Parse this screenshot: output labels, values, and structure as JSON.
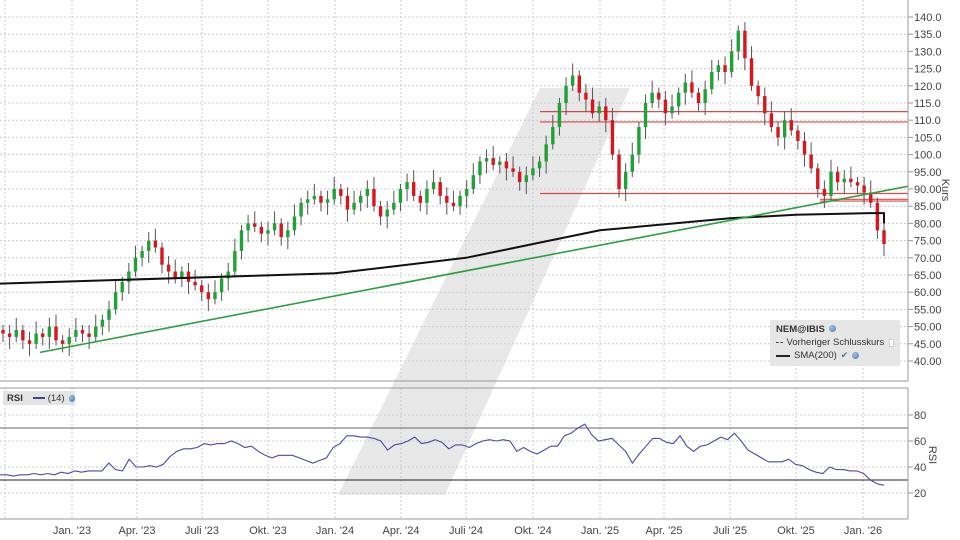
{
  "chart_data": [
    {
      "type": "candlestick",
      "title": "NEM@IBIS",
      "ylabel": "Kurs",
      "ylim": [
        37,
        143
      ],
      "yticks": [
        "140.0",
        "135.0",
        "130.0",
        "125.0",
        "120.0",
        "115.0",
        "110.0",
        "105.0",
        "100.0",
        "95.00",
        "90.00",
        "85.00",
        "80.00",
        "75.00",
        "70.00",
        "65.00",
        "60.00",
        "55.00",
        "50.00",
        "45.00",
        "40.00"
      ],
      "xticks": [
        "Jan. '23",
        "Apr. '23",
        "Juli '23",
        "Okt. '23",
        "Jan. '24",
        "Apr. '24",
        "Juli '24",
        "Okt. '24",
        "Jan. '25",
        "Apr. '25",
        "Juli '25",
        "Okt. '25",
        "Jan. '26"
      ],
      "legend": [
        "NEM@IBIS",
        "Vorheriger Schlusskurs",
        "SMA(200)"
      ],
      "weekly_close_approx": [
        48,
        47,
        49,
        46,
        45,
        48,
        47,
        50,
        46,
        45,
        47,
        49,
        48,
        47,
        50,
        52,
        55,
        60,
        63,
        66,
        70,
        72,
        75,
        73,
        68,
        66,
        64,
        66,
        63,
        62,
        60,
        58,
        60,
        64,
        66,
        72,
        78,
        80,
        79,
        77,
        78,
        80,
        76,
        78,
        82,
        86,
        87,
        88,
        86,
        87,
        90,
        88,
        84,
        86,
        88,
        90,
        85,
        82,
        84,
        86,
        90,
        92,
        88,
        86,
        90,
        92,
        88,
        86,
        85,
        88,
        90,
        94,
        98,
        99,
        97,
        98,
        96,
        95,
        92,
        94,
        96,
        98,
        103,
        108,
        115,
        120,
        123,
        118,
        116,
        112,
        114,
        110,
        100,
        90,
        95,
        100,
        108,
        115,
        118,
        116,
        112,
        114,
        118,
        121,
        118,
        115,
        119,
        124,
        126,
        124,
        130,
        136,
        128,
        120,
        117,
        112,
        108,
        105,
        110,
        107,
        104,
        100,
        96,
        90,
        88,
        95,
        92,
        93,
        92,
        91,
        89,
        86,
        78,
        74
      ],
      "sma200_approx": {
        "start": 62.5,
        "Jan. '24": 65.5,
        "Juli '24": 70,
        "Okt. '24": 74,
        "Jan. '25": 78,
        "Juli '25": 81.5,
        "Okt. '25": 82.5,
        "Jan. '26": 83
      },
      "trendline_green": {
        "from": [
          40,
          42.5
        ],
        "to": [
          908,
          90.8
        ]
      },
      "horizontal_red_lines": [
        112.5,
        109.5,
        88.7,
        87.0,
        86.5
      ],
      "last_close_approx": 74
    },
    {
      "type": "line",
      "title": "RSI",
      "series_name": "RSI (14)",
      "ylabel": "RSI",
      "ylim": [
        10,
        90
      ],
      "yticks": [
        "80",
        "60",
        "40",
        "20"
      ],
      "reference_lines": [
        70,
        30
      ],
      "values_approx": [
        34,
        34,
        33,
        34,
        34,
        35,
        34,
        35,
        34,
        36,
        35,
        37,
        36,
        37,
        37,
        37,
        43,
        38,
        37,
        46,
        40,
        40,
        41,
        40,
        42,
        48,
        52,
        54,
        54,
        55,
        58,
        57,
        58,
        58,
        60,
        58,
        55,
        56,
        52,
        49,
        47,
        49,
        49,
        49,
        47,
        45,
        43,
        45,
        47,
        55,
        58,
        64,
        64,
        63,
        63,
        62,
        60,
        53,
        57,
        58,
        60,
        63,
        58,
        59,
        61,
        59,
        54,
        57,
        57,
        55,
        58,
        60,
        61,
        60,
        61,
        60,
        52,
        55,
        52,
        50,
        53,
        56,
        56,
        64,
        66,
        70,
        73,
        65,
        60,
        61,
        62,
        57,
        52,
        43,
        50,
        56,
        62,
        62,
        59,
        58,
        64,
        56,
        52,
        56,
        57,
        60,
        63,
        61,
        66,
        60,
        53,
        50,
        47,
        44,
        44,
        44,
        46,
        42,
        41,
        38,
        36,
        35,
        40,
        38,
        38,
        37,
        37,
        35,
        30,
        27,
        26
      ]
    }
  ],
  "legend": {
    "title": "NEM@IBIS",
    "previous_close_label": "Vorheriger Schlusskurs",
    "sma_label": "SMA(200)"
  },
  "rsi_legend": {
    "title": "RSI",
    "period": "(14)"
  },
  "colors": {
    "up": "#1fa336",
    "down": "#d8161e",
    "wick": "#222222",
    "sma": "#111111",
    "trendline": "#2aa040",
    "hline": "#d42b2b",
    "rsi": "#4a4aa8",
    "watermark": "#e6e6e6"
  }
}
